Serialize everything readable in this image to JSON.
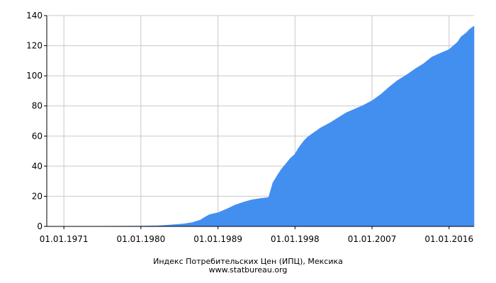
{
  "chart_data": {
    "type": "area",
    "title": "Индекс Потребительских Цен (ИПЦ), Мексика",
    "source": "www.statbureau.org",
    "xlabel": "",
    "ylabel": "",
    "ylim": [
      0,
      140
    ],
    "xlim": [
      "1969-01-01",
      "2018-12-01"
    ],
    "yticks": [
      "0",
      "20",
      "40",
      "60",
      "80",
      "100",
      "120",
      "140"
    ],
    "xticks": [
      "01.01.1971",
      "01.01.1980",
      "01.01.1989",
      "01.01.1998",
      "01.01.2007",
      "01.01.2016"
    ],
    "grid": true,
    "colors": {
      "fill": "#438ff0",
      "grid": "#c8c8c8",
      "axis": "#000000"
    },
    "series": [
      {
        "x": [
          "1969-01-01",
          "1975-01-01",
          "1980-01-01",
          "1982-01-01",
          "1983-01-01",
          "1984-01-01",
          "1985-01-01",
          "1986-01-01",
          "1987-01-01",
          "1987-07-01",
          "1988-01-01",
          "1988-07-01",
          "1989-01-01",
          "1990-01-01",
          "1991-01-01",
          "1992-01-01",
          "1993-01-01",
          "1994-01-01",
          "1994-12-01",
          "1995-03-01",
          "1995-06-01",
          "1996-01-01",
          "1996-06-01",
          "1997-01-01",
          "1997-06-01",
          "1998-01-01",
          "1998-06-01",
          "1999-01-01",
          "1999-06-01",
          "2000-01-01",
          "2001-01-01",
          "2002-01-01",
          "2003-01-01",
          "2004-01-01",
          "2005-01-01",
          "2006-01-01",
          "2007-01-01",
          "2008-01-01",
          "2009-01-01",
          "2010-01-01",
          "2011-01-01",
          "2012-01-01",
          "2013-01-01",
          "2014-01-01",
          "2015-01-01",
          "2016-01-01",
          "2017-01-01",
          "2017-06-01",
          "2018-01-01",
          "2018-06-01",
          "2018-12-01"
        ],
        "values": [
          0.1,
          0.1,
          0.2,
          0.4,
          0.8,
          1.2,
          1.7,
          2.6,
          4.4,
          6.2,
          7.8,
          8.5,
          9.1,
          11.5,
          14.2,
          16.1,
          17.7,
          18.6,
          19.2,
          24.0,
          29.0,
          34.5,
          38.0,
          42.0,
          45.0,
          48.0,
          52.0,
          56.5,
          59.0,
          61.5,
          65.5,
          68.5,
          72.0,
          75.5,
          78.0,
          80.5,
          83.5,
          87.5,
          92.5,
          97.0,
          100.5,
          104.5,
          108.0,
          112.5,
          115.0,
          117.5,
          122.5,
          126.0,
          128.5,
          131.0,
          133.0
        ]
      }
    ]
  }
}
